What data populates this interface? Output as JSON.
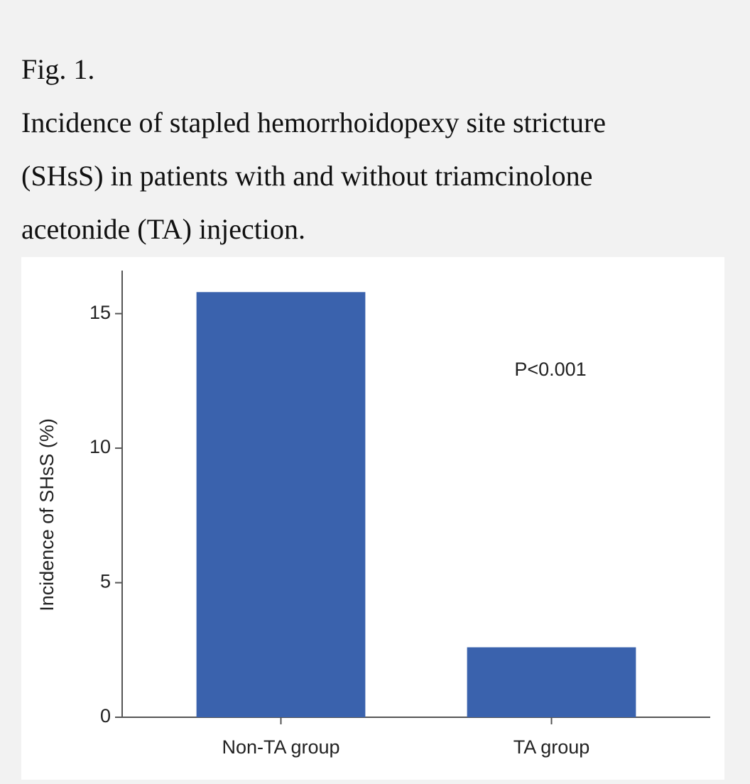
{
  "figure_label": "Fig. 1.",
  "caption": "Incidence of stapled hemorrhoidopexy site stricture (SHsS) in patients with and without triamcinolone acetonide (TA) injection.",
  "chart_data": {
    "type": "bar",
    "y_label": "Incidence of SHsS (%)",
    "annotation": "P<0.001",
    "categories": [
      "Non-TA group",
      "TA group"
    ],
    "values": [
      15.8,
      2.6
    ],
    "color": "#3a62ad",
    "ylim": [
      0,
      16.6
    ],
    "yticks": [
      0,
      5,
      10,
      15
    ],
    "grid": false
  }
}
